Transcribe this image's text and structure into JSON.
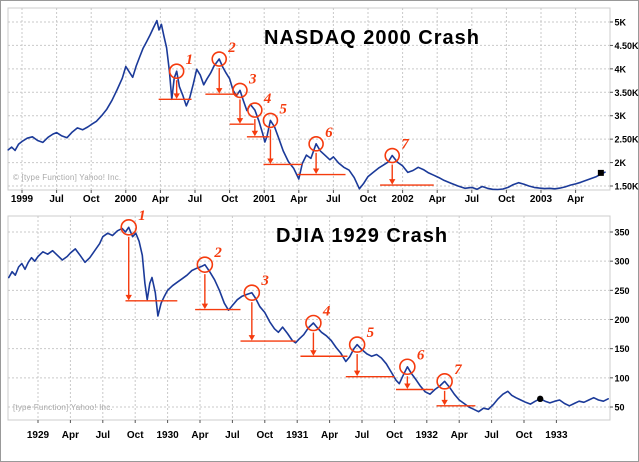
{
  "page": {
    "background": "#ffffff",
    "frame_color": "#999999"
  },
  "chart_data": [
    {
      "type": "line",
      "title": "NASDAQ 2000 Crash",
      "watermark": "© [type Function] Yahoo! Inc.",
      "x_unit": "tick index (1 tick = 3 months)",
      "x_tick_labels": [
        "1999",
        "Jul",
        "Oct",
        "2000",
        "Apr",
        "Jul",
        "Oct",
        "2001",
        "Apr",
        "Jul",
        "Oct",
        "2002",
        "Apr",
        "Jul",
        "Oct",
        "2003",
        "Apr"
      ],
      "y_axis": {
        "side": "right",
        "ticks": [
          {
            "label": "5K",
            "value": 5000
          },
          {
            "label": "4.50K",
            "value": 4500
          },
          {
            "label": "4K",
            "value": 4000
          },
          {
            "label": "3.50K",
            "value": 3500
          },
          {
            "label": "3K",
            "value": 3000
          },
          {
            "label": "2.50K",
            "value": 2500
          },
          {
            "label": "2K",
            "value": 2000
          },
          {
            "label": "1.50K",
            "value": 1500
          }
        ]
      },
      "ylim": [
        1425,
        5300
      ],
      "grid": true,
      "colors": {
        "line": "#1b3a99",
        "annotation": "#f53b0e",
        "grid": "#c9c9c9",
        "axis_text": "#000000",
        "plot_border": "#cccccc",
        "tick": "#555555"
      },
      "points": [
        [
          -0.4,
          2270
        ],
        [
          -0.3,
          2330
        ],
        [
          -0.2,
          2260
        ],
        [
          -0.1,
          2390
        ],
        [
          0.0,
          2450
        ],
        [
          0.15,
          2520
        ],
        [
          0.3,
          2550
        ],
        [
          0.45,
          2470
        ],
        [
          0.6,
          2430
        ],
        [
          0.75,
          2540
        ],
        [
          0.9,
          2610
        ],
        [
          1.0,
          2640
        ],
        [
          1.15,
          2570
        ],
        [
          1.3,
          2530
        ],
        [
          1.45,
          2650
        ],
        [
          1.6,
          2740
        ],
        [
          1.75,
          2700
        ],
        [
          1.9,
          2760
        ],
        [
          2.0,
          2810
        ],
        [
          2.15,
          2880
        ],
        [
          2.3,
          3000
        ],
        [
          2.45,
          3140
        ],
        [
          2.6,
          3330
        ],
        [
          2.75,
          3560
        ],
        [
          2.9,
          3800
        ],
        [
          3.0,
          4050
        ],
        [
          3.1,
          3930
        ],
        [
          3.2,
          3820
        ],
        [
          3.3,
          4060
        ],
        [
          3.4,
          4250
        ],
        [
          3.5,
          4440
        ],
        [
          3.6,
          4580
        ],
        [
          3.7,
          4720
        ],
        [
          3.8,
          4880
        ],
        [
          3.9,
          5030
        ],
        [
          3.96,
          4830
        ],
        [
          4.03,
          4950
        ],
        [
          4.1,
          4700
        ],
        [
          4.18,
          4450
        ],
        [
          4.26,
          3950
        ],
        [
          4.33,
          3350
        ],
        [
          4.4,
          3800
        ],
        [
          4.47,
          3950
        ],
        [
          4.55,
          3620
        ],
        [
          4.65,
          3430
        ],
        [
          4.75,
          3210
        ],
        [
          4.85,
          3390
        ],
        [
          4.95,
          3680
        ],
        [
          5.05,
          3990
        ],
        [
          5.15,
          3870
        ],
        [
          5.25,
          3660
        ],
        [
          5.35,
          3790
        ],
        [
          5.45,
          3910
        ],
        [
          5.55,
          4060
        ],
        [
          5.7,
          4210
        ],
        [
          5.8,
          4040
        ],
        [
          5.9,
          3910
        ],
        [
          6.0,
          3790
        ],
        [
          6.1,
          3540
        ],
        [
          6.2,
          3430
        ],
        [
          6.3,
          3540
        ],
        [
          6.4,
          3320
        ],
        [
          6.5,
          3110
        ],
        [
          6.6,
          3240
        ],
        [
          6.73,
          3120
        ],
        [
          6.85,
          2880
        ],
        [
          6.95,
          2630
        ],
        [
          7.02,
          2440
        ],
        [
          7.08,
          2560
        ],
        [
          7.18,
          2900
        ],
        [
          7.3,
          2760
        ],
        [
          7.42,
          2520
        ],
        [
          7.55,
          2250
        ],
        [
          7.7,
          2020
        ],
        [
          7.85,
          1880
        ],
        [
          8.0,
          1650
        ],
        [
          8.1,
          1980
        ],
        [
          8.22,
          2160
        ],
        [
          8.35,
          2090
        ],
        [
          8.5,
          2400
        ],
        [
          8.62,
          2250
        ],
        [
          8.75,
          2160
        ],
        [
          8.9,
          2060
        ],
        [
          9.0,
          2120
        ],
        [
          9.15,
          1990
        ],
        [
          9.3,
          1900
        ],
        [
          9.45,
          1840
        ],
        [
          9.6,
          1680
        ],
        [
          9.75,
          1440
        ],
        [
          9.88,
          1560
        ],
        [
          10.0,
          1700
        ],
        [
          10.15,
          1790
        ],
        [
          10.3,
          1880
        ],
        [
          10.45,
          1950
        ],
        [
          10.58,
          2010
        ],
        [
          10.7,
          2150
        ],
        [
          10.85,
          2010
        ],
        [
          11.0,
          1930
        ],
        [
          11.15,
          1790
        ],
        [
          11.3,
          1830
        ],
        [
          11.45,
          1900
        ],
        [
          11.6,
          1850
        ],
        [
          11.75,
          1780
        ],
        [
          11.9,
          1730
        ],
        [
          12.05,
          1680
        ],
        [
          12.2,
          1620
        ],
        [
          12.4,
          1560
        ],
        [
          12.6,
          1500
        ],
        [
          12.8,
          1450
        ],
        [
          13.0,
          1470
        ],
        [
          13.15,
          1430
        ],
        [
          13.3,
          1490
        ],
        [
          13.45,
          1450
        ],
        [
          13.6,
          1430
        ],
        [
          13.75,
          1425
        ],
        [
          13.9,
          1435
        ],
        [
          14.05,
          1470
        ],
        [
          14.2,
          1530
        ],
        [
          14.35,
          1570
        ],
        [
          14.5,
          1540
        ],
        [
          14.65,
          1500
        ],
        [
          14.8,
          1470
        ],
        [
          14.95,
          1455
        ],
        [
          15.1,
          1445
        ],
        [
          15.25,
          1450
        ],
        [
          15.4,
          1440
        ],
        [
          15.55,
          1455
        ],
        [
          15.7,
          1480
        ],
        [
          15.85,
          1520
        ],
        [
          16.0,
          1545
        ],
        [
          16.15,
          1580
        ],
        [
          16.3,
          1620
        ],
        [
          16.45,
          1660
        ],
        [
          16.6,
          1700
        ],
        [
          16.75,
          1760
        ],
        [
          16.85,
          1795
        ]
      ],
      "annotations": [
        {
          "label": "1",
          "x": 4.47,
          "peak_value": 3950,
          "drop_to": 3350,
          "support_from_x": 3.95,
          "support_to_x": 4.9
        },
        {
          "label": "2",
          "x": 5.7,
          "peak_value": 4210,
          "drop_to": 3460,
          "support_from_x": 5.3,
          "support_to_x": 6.25
        },
        {
          "label": "3",
          "x": 6.3,
          "peak_value": 3540,
          "drop_to": 2820,
          "support_from_x": 6.0,
          "support_to_x": 6.7
        },
        {
          "label": "4",
          "x": 6.73,
          "peak_value": 3120,
          "drop_to": 2550,
          "support_from_x": 6.5,
          "support_to_x": 7.15
        },
        {
          "label": "5",
          "x": 7.18,
          "peak_value": 2900,
          "drop_to": 1960,
          "support_from_x": 6.98,
          "support_to_x": 8.1
        },
        {
          "label": "6",
          "x": 8.5,
          "peak_value": 2400,
          "drop_to": 1745,
          "support_from_x": 7.95,
          "support_to_x": 9.35
        },
        {
          "label": "7",
          "x": 10.7,
          "peak_value": 2150,
          "drop_to": 1520,
          "support_from_x": 10.35,
          "support_to_x": 11.9
        }
      ],
      "marker_dot": {
        "x": 16.73,
        "value": 1780,
        "shape": "square"
      }
    },
    {
      "type": "line",
      "title": "DJIA 1929 Crash",
      "watermark": "[type Function] Yahoo! Inc.",
      "x_unit": "tick index (1 tick = 3 months)",
      "x_tick_labels": [
        "1929",
        "Apr",
        "Jul",
        "Oct",
        "1930",
        "Apr",
        "Jul",
        "Oct",
        "1931",
        "Apr",
        "Jul",
        "Oct",
        "1932",
        "Apr",
        "Jul",
        "Oct",
        "1933"
      ],
      "y_axis": {
        "side": "right",
        "ticks": [
          {
            "label": "350",
            "value": 350
          },
          {
            "label": "300",
            "value": 300
          },
          {
            "label": "250",
            "value": 250
          },
          {
            "label": "200",
            "value": 200
          },
          {
            "label": "150",
            "value": 150
          },
          {
            "label": "100",
            "value": 100
          },
          {
            "label": "50",
            "value": 50
          }
        ]
      },
      "ylim": [
        28,
        380
      ],
      "grid": true,
      "colors": {
        "line": "#1b3a99",
        "annotation": "#f53b0e",
        "grid": "#c9c9c9",
        "axis_text": "#000000",
        "plot_border": "#cccccc",
        "tick": "#555555"
      },
      "points": [
        [
          -0.9,
          272
        ],
        [
          -0.8,
          282
        ],
        [
          -0.7,
          276
        ],
        [
          -0.6,
          290
        ],
        [
          -0.5,
          296
        ],
        [
          -0.4,
          286
        ],
        [
          -0.3,
          298
        ],
        [
          -0.2,
          306
        ],
        [
          -0.1,
          300
        ],
        [
          0.0,
          308
        ],
        [
          0.15,
          316
        ],
        [
          0.3,
          312
        ],
        [
          0.45,
          318
        ],
        [
          0.6,
          310
        ],
        [
          0.75,
          302
        ],
        [
          0.9,
          308
        ],
        [
          1.0,
          314
        ],
        [
          1.15,
          321
        ],
        [
          1.3,
          310
        ],
        [
          1.45,
          298
        ],
        [
          1.6,
          306
        ],
        [
          1.75,
          318
        ],
        [
          1.9,
          330
        ],
        [
          2.0,
          342
        ],
        [
          2.15,
          348
        ],
        [
          2.3,
          344
        ],
        [
          2.45,
          352
        ],
        [
          2.6,
          356
        ],
        [
          2.7,
          350
        ],
        [
          2.8,
          358
        ],
        [
          2.92,
          342
        ],
        [
          3.02,
          348
        ],
        [
          3.12,
          334
        ],
        [
          3.22,
          310
        ],
        [
          3.3,
          262
        ],
        [
          3.37,
          234
        ],
        [
          3.45,
          262
        ],
        [
          3.52,
          272
        ],
        [
          3.62,
          246
        ],
        [
          3.7,
          206
        ],
        [
          3.8,
          228
        ],
        [
          3.9,
          240
        ],
        [
          4.0,
          250
        ],
        [
          4.15,
          258
        ],
        [
          4.3,
          264
        ],
        [
          4.45,
          270
        ],
        [
          4.6,
          276
        ],
        [
          4.75,
          284
        ],
        [
          4.9,
          288
        ],
        [
          5.05,
          291
        ],
        [
          5.15,
          294
        ],
        [
          5.3,
          282
        ],
        [
          5.45,
          268
        ],
        [
          5.6,
          250
        ],
        [
          5.75,
          228
        ],
        [
          5.88,
          216
        ],
        [
          6.0,
          224
        ],
        [
          6.15,
          234
        ],
        [
          6.3,
          240
        ],
        [
          6.45,
          243
        ],
        [
          6.6,
          246
        ],
        [
          6.72,
          236
        ],
        [
          6.85,
          222
        ],
        [
          7.0,
          212
        ],
        [
          7.15,
          196
        ],
        [
          7.3,
          184
        ],
        [
          7.42,
          178
        ],
        [
          7.55,
          187
        ],
        [
          7.7,
          176
        ],
        [
          7.85,
          164
        ],
        [
          7.95,
          160
        ],
        [
          8.05,
          166
        ],
        [
          8.2,
          174
        ],
        [
          8.35,
          186
        ],
        [
          8.5,
          194
        ],
        [
          8.62,
          186
        ],
        [
          8.75,
          178
        ],
        [
          8.9,
          172
        ],
        [
          9.05,
          164
        ],
        [
          9.2,
          152
        ],
        [
          9.35,
          142
        ],
        [
          9.5,
          128
        ],
        [
          9.62,
          136
        ],
        [
          9.75,
          150
        ],
        [
          9.85,
          157
        ],
        [
          10.0,
          148
        ],
        [
          10.15,
          141
        ],
        [
          10.3,
          137
        ],
        [
          10.45,
          140
        ],
        [
          10.6,
          134
        ],
        [
          10.75,
          124
        ],
        [
          10.9,
          110
        ],
        [
          11.05,
          96
        ],
        [
          11.15,
          90
        ],
        [
          11.25,
          102
        ],
        [
          11.4,
          119
        ],
        [
          11.52,
          108
        ],
        [
          11.65,
          98
        ],
        [
          11.8,
          86
        ],
        [
          11.95,
          76
        ],
        [
          12.1,
          72
        ],
        [
          12.25,
          80
        ],
        [
          12.4,
          86
        ],
        [
          12.55,
          94
        ],
        [
          12.7,
          84
        ],
        [
          12.85,
          72
        ],
        [
          13.0,
          62
        ],
        [
          13.15,
          56
        ],
        [
          13.3,
          50
        ],
        [
          13.45,
          46
        ],
        [
          13.6,
          42
        ],
        [
          13.75,
          48
        ],
        [
          13.9,
          46
        ],
        [
          14.05,
          54
        ],
        [
          14.2,
          64
        ],
        [
          14.35,
          72
        ],
        [
          14.5,
          77
        ],
        [
          14.62,
          70
        ],
        [
          14.75,
          66
        ],
        [
          14.9,
          62
        ],
        [
          15.05,
          58
        ],
        [
          15.2,
          55
        ],
        [
          15.35,
          60
        ],
        [
          15.5,
          64
        ],
        [
          15.65,
          60
        ],
        [
          15.8,
          57
        ],
        [
          15.95,
          60
        ],
        [
          16.1,
          62
        ],
        [
          16.25,
          56
        ],
        [
          16.4,
          52
        ],
        [
          16.55,
          56
        ],
        [
          16.7,
          60
        ],
        [
          16.85,
          58
        ],
        [
          17.0,
          62
        ],
        [
          17.15,
          66
        ],
        [
          17.3,
          62
        ],
        [
          17.45,
          60
        ],
        [
          17.6,
          64
        ]
      ],
      "annotations": [
        {
          "label": "1",
          "x": 2.8,
          "peak_value": 358,
          "drop_to": 232,
          "support_from_x": 2.7,
          "support_to_x": 4.3
        },
        {
          "label": "2",
          "x": 5.15,
          "peak_value": 294,
          "drop_to": 217,
          "support_from_x": 4.85,
          "support_to_x": 6.25
        },
        {
          "label": "3",
          "x": 6.6,
          "peak_value": 246,
          "drop_to": 163,
          "support_from_x": 6.25,
          "support_to_x": 7.95
        },
        {
          "label": "4",
          "x": 8.5,
          "peak_value": 194,
          "drop_to": 137,
          "support_from_x": 8.1,
          "support_to_x": 9.55
        },
        {
          "label": "5",
          "x": 9.85,
          "peak_value": 157,
          "drop_to": 102,
          "support_from_x": 9.5,
          "support_to_x": 11.0
        },
        {
          "label": "6",
          "x": 11.4,
          "peak_value": 119,
          "drop_to": 80,
          "support_from_x": 11.05,
          "support_to_x": 12.2
        },
        {
          "label": "7",
          "x": 12.55,
          "peak_value": 94,
          "drop_to": 52,
          "support_from_x": 12.3,
          "support_to_x": 13.5
        }
      ],
      "marker_dot": {
        "x": 15.5,
        "value": 64,
        "shape": "circle"
      }
    }
  ]
}
